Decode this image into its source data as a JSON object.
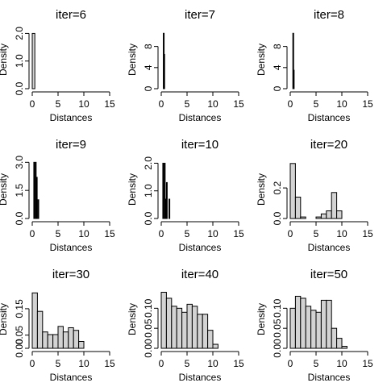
{
  "chart_data": [
    {
      "type": "bar",
      "title": "iter=6",
      "xlabel": "Distances",
      "ylabel": "Density",
      "xlim": [
        0,
        15
      ],
      "xticks": [
        0,
        5,
        10,
        15
      ],
      "yticks": [
        "0.0",
        "1.0",
        "2.0"
      ],
      "ylim": [
        0,
        2.1
      ],
      "bins": [
        {
          "x0": 0,
          "x1": 0.5,
          "density": 2.0
        }
      ]
    },
    {
      "type": "bar",
      "title": "iter=7",
      "xlabel": "Distances",
      "ylabel": "Density",
      "xlim": [
        0,
        15
      ],
      "xticks": [
        0,
        5,
        10,
        15
      ],
      "yticks": [
        "0",
        "4",
        "8"
      ],
      "ylim": [
        0,
        11
      ],
      "bins": [
        {
          "x0": 0.4,
          "x1": 0.5,
          "density": 10.5
        },
        {
          "x0": 0.5,
          "x1": 0.6,
          "density": 6.5
        }
      ]
    },
    {
      "type": "bar",
      "title": "iter=8",
      "xlabel": "Distances",
      "ylabel": "Density",
      "xlim": [
        0,
        15
      ],
      "xticks": [
        0,
        5,
        10,
        15
      ],
      "yticks": [
        "0",
        "4",
        "8"
      ],
      "ylim": [
        0,
        11
      ],
      "bins": [
        {
          "x0": 0.5,
          "x1": 0.6,
          "density": 10.5
        },
        {
          "x0": 0.6,
          "x1": 0.7,
          "density": 3.5
        }
      ]
    },
    {
      "type": "bar",
      "title": "iter=9",
      "xlabel": "Distances",
      "ylabel": "Density",
      "xlim": [
        0,
        15
      ],
      "xticks": [
        0,
        5,
        10,
        15
      ],
      "yticks": [
        "0.0",
        "1.5",
        "3.0"
      ],
      "ylim": [
        0,
        3.1
      ],
      "bins": [
        {
          "x0": 0.3,
          "x1": 0.4,
          "density": 3.0
        },
        {
          "x0": 0.6,
          "x1": 0.7,
          "density": 3.0
        },
        {
          "x0": 0.8,
          "x1": 0.9,
          "density": 2.2
        },
        {
          "x0": 1.1,
          "x1": 1.2,
          "density": 1.0
        }
      ]
    },
    {
      "type": "bar",
      "title": "iter=10",
      "xlabel": "Distances",
      "ylabel": "Density",
      "xlim": [
        0,
        15
      ],
      "xticks": [
        0,
        5,
        10,
        15
      ],
      "yticks": [
        "0.0",
        "1.0",
        "2.0"
      ],
      "ylim": [
        0,
        2.1
      ],
      "bins": [
        {
          "x0": 0.3,
          "x1": 0.4,
          "density": 2.0
        },
        {
          "x0": 0.6,
          "x1": 0.7,
          "density": 2.0
        },
        {
          "x0": 0.8,
          "x1": 0.9,
          "density": 0.7
        },
        {
          "x0": 1.0,
          "x1": 1.1,
          "density": 1.3
        },
        {
          "x0": 1.5,
          "x1": 1.6,
          "density": 0.7
        }
      ]
    },
    {
      "type": "bar",
      "title": "iter=20",
      "xlabel": "Distances",
      "ylabel": "Density",
      "xlim": [
        0,
        15
      ],
      "xticks": [
        0,
        5,
        10,
        15
      ],
      "yticks": [
        "0.0",
        "0.2"
      ],
      "ylim": [
        0,
        0.38
      ],
      "bins": [
        {
          "x0": 0,
          "x1": 1,
          "density": 0.36
        },
        {
          "x0": 1,
          "x1": 2,
          "density": 0.14
        },
        {
          "x0": 2,
          "x1": 3,
          "density": 0.01
        },
        {
          "x0": 3,
          "x1": 4,
          "density": 0.0
        },
        {
          "x0": 4,
          "x1": 5,
          "density": 0.0
        },
        {
          "x0": 5,
          "x1": 6,
          "density": 0.01
        },
        {
          "x0": 6,
          "x1": 7,
          "density": 0.03
        },
        {
          "x0": 7,
          "x1": 8,
          "density": 0.05
        },
        {
          "x0": 8,
          "x1": 9,
          "density": 0.17
        },
        {
          "x0": 9,
          "x1": 10,
          "density": 0.05
        }
      ]
    },
    {
      "type": "bar",
      "title": "iter=30",
      "xlabel": "Distances",
      "ylabel": "Density",
      "xlim": [
        0,
        15
      ],
      "xticks": [
        0,
        5,
        10,
        15
      ],
      "yticks": [
        "0.00",
        "0.05",
        "0.15"
      ],
      "ylim": [
        0,
        0.22
      ],
      "bins": [
        {
          "x0": 0,
          "x1": 1,
          "density": 0.21
        },
        {
          "x0": 1,
          "x1": 2,
          "density": 0.14
        },
        {
          "x0": 2,
          "x1": 3,
          "density": 0.062
        },
        {
          "x0": 3,
          "x1": 4,
          "density": 0.052
        },
        {
          "x0": 4,
          "x1": 5,
          "density": 0.052
        },
        {
          "x0": 5,
          "x1": 6,
          "density": 0.083
        },
        {
          "x0": 6,
          "x1": 7,
          "density": 0.062
        },
        {
          "x0": 7,
          "x1": 8,
          "density": 0.078
        },
        {
          "x0": 8,
          "x1": 9,
          "density": 0.068
        },
        {
          "x0": 9,
          "x1": 10,
          "density": 0.026
        }
      ]
    },
    {
      "type": "bar",
      "title": "iter=40",
      "xlabel": "Distances",
      "ylabel": "Density",
      "xlim": [
        0,
        15
      ],
      "xticks": [
        0,
        5,
        10,
        15
      ],
      "yticks": [
        "0.00",
        "0.05",
        "0.10"
      ],
      "ylim": [
        0,
        0.145
      ],
      "bins": [
        {
          "x0": 0,
          "x1": 1,
          "density": 0.14
        },
        {
          "x0": 1,
          "x1": 2,
          "density": 0.125
        },
        {
          "x0": 2,
          "x1": 3,
          "density": 0.105
        },
        {
          "x0": 3,
          "x1": 4,
          "density": 0.1
        },
        {
          "x0": 4,
          "x1": 5,
          "density": 0.09
        },
        {
          "x0": 5,
          "x1": 6,
          "density": 0.11
        },
        {
          "x0": 6,
          "x1": 7,
          "density": 0.105
        },
        {
          "x0": 7,
          "x1": 8,
          "density": 0.085
        },
        {
          "x0": 8,
          "x1": 9,
          "density": 0.085
        },
        {
          "x0": 9,
          "x1": 10,
          "density": 0.045
        },
        {
          "x0": 10,
          "x1": 11,
          "density": 0.01
        }
      ]
    },
    {
      "type": "bar",
      "title": "iter=50",
      "xlabel": "Distances",
      "ylabel": "Density",
      "xlim": [
        0,
        15
      ],
      "xticks": [
        0,
        5,
        10,
        15
      ],
      "yticks": [
        "0.00",
        "0.05",
        "0.10"
      ],
      "ylim": [
        0,
        0.145
      ],
      "bins": [
        {
          "x0": 0,
          "x1": 1,
          "density": 0.1
        },
        {
          "x0": 1,
          "x1": 2,
          "density": 0.13
        },
        {
          "x0": 2,
          "x1": 3,
          "density": 0.125
        },
        {
          "x0": 3,
          "x1": 4,
          "density": 0.105
        },
        {
          "x0": 4,
          "x1": 5,
          "density": 0.095
        },
        {
          "x0": 5,
          "x1": 6,
          "density": 0.09
        },
        {
          "x0": 6,
          "x1": 7,
          "density": 0.12
        },
        {
          "x0": 7,
          "x1": 8,
          "density": 0.12
        },
        {
          "x0": 8,
          "x1": 9,
          "density": 0.05
        },
        {
          "x0": 9,
          "x1": 10,
          "density": 0.025
        },
        {
          "x0": 10,
          "x1": 11,
          "density": 0.005
        }
      ]
    }
  ]
}
